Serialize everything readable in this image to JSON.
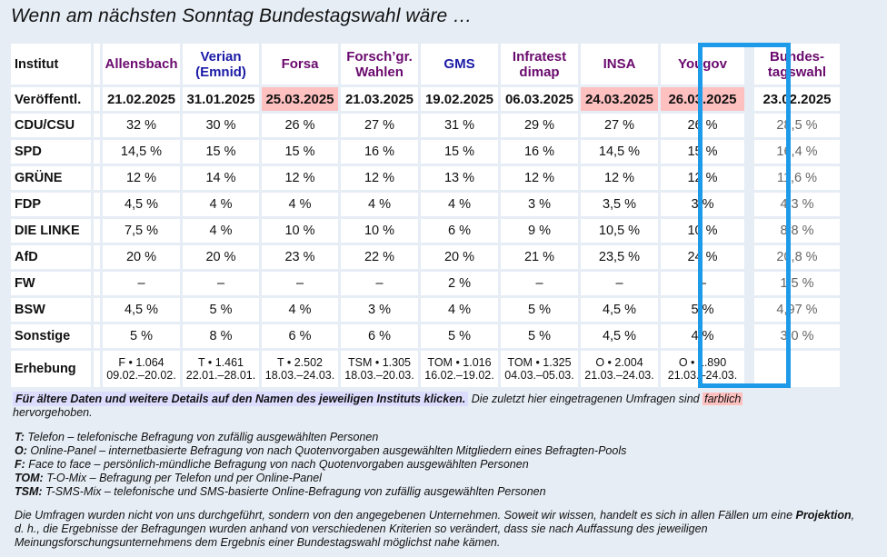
{
  "title": "Wenn am nächsten Sonntag Bundestagswahl wäre …",
  "table": {
    "institut_label": "Institut",
    "date_label": "Veröffentl.",
    "erhebung_label": "Erhebung",
    "institutes": [
      {
        "name_line1": "Allensbach",
        "name_line2": "",
        "color": "#6a0a6e",
        "date": "21.02.2025",
        "highlight": false,
        "erhebung_line1": "F • 1.064",
        "erhebung_line2": "09.02.–20.02."
      },
      {
        "name_line1": "Verian",
        "name_line2": "(Emnid)",
        "color": "#1a1aa6",
        "date": "31.01.2025",
        "highlight": false,
        "erhebung_line1": "T • 1.461",
        "erhebung_line2": "22.01.–28.01."
      },
      {
        "name_line1": "Forsa",
        "name_line2": "",
        "color": "#6a0a6e",
        "date": "25.03.2025",
        "highlight": true,
        "erhebung_line1": "T • 2.502",
        "erhebung_line2": "18.03.–24.03."
      },
      {
        "name_line1": "Forsch’gr.",
        "name_line2": "Wahlen",
        "color": "#6a0a6e",
        "date": "21.03.2025",
        "highlight": false,
        "erhebung_line1": "TSM • 1.305",
        "erhebung_line2": "18.03.–20.03."
      },
      {
        "name_line1": "GMS",
        "name_line2": "",
        "color": "#1a1aa6",
        "date": "19.02.2025",
        "highlight": false,
        "erhebung_line1": "TOM • 1.016",
        "erhebung_line2": "16.02.–19.02."
      },
      {
        "name_line1": "Infratest",
        "name_line2": "dimap",
        "color": "#6a0a6e",
        "date": "06.03.2025",
        "highlight": false,
        "erhebung_line1": "TOM • 1.325",
        "erhebung_line2": "04.03.–05.03."
      },
      {
        "name_line1": "INSA",
        "name_line2": "",
        "color": "#6a0a6e",
        "date": "24.03.2025",
        "highlight": true,
        "erhebung_line1": "O • 2.004",
        "erhebung_line2": "21.03.–24.03."
      },
      {
        "name_line1": "Yougov",
        "name_line2": "",
        "color": "#6a0a6e",
        "date": "26.03.2025",
        "highlight": true,
        "erhebung_line1": "O • 1.890",
        "erhebung_line2": "21.03.–24.03."
      }
    ],
    "result_column": {
      "name_line1": "Bundes-",
      "name_line2": "tagswahl",
      "date": "23.02.2025"
    },
    "parties": [
      {
        "name": "CDU/CSU",
        "values": [
          "32 %",
          "30 %",
          "26 %",
          "27 %",
          "31 %",
          "29 %",
          "27 %",
          "26 %"
        ],
        "result": "28,5 %"
      },
      {
        "name": "SPD",
        "values": [
          "14,5 %",
          "15 %",
          "15 %",
          "16 %",
          "15 %",
          "16 %",
          "14,5 %",
          "15 %"
        ],
        "result": "16,4 %"
      },
      {
        "name": "GRÜNE",
        "values": [
          "12 %",
          "14 %",
          "12 %",
          "12 %",
          "13 %",
          "12 %",
          "12 %",
          "12 %"
        ],
        "result": "11,6 %"
      },
      {
        "name": "FDP",
        "values": [
          "4,5 %",
          "4 %",
          "4 %",
          "4 %",
          "4 %",
          "3 %",
          "3,5 %",
          "3 %"
        ],
        "result": "4,3 %"
      },
      {
        "name": "DIE LINKE",
        "values": [
          "7,5 %",
          "4 %",
          "10 %",
          "10 %",
          "6 %",
          "9 %",
          "10,5 %",
          "10 %"
        ],
        "result": "8,8 %"
      },
      {
        "name": "AfD",
        "values": [
          "20 %",
          "20 %",
          "23 %",
          "22 %",
          "20 %",
          "21 %",
          "23,5 %",
          "24 %"
        ],
        "result": "20,8 %"
      },
      {
        "name": "FW",
        "values": [
          "–",
          "–",
          "–",
          "–",
          "2 %",
          "–",
          "–",
          "–"
        ],
        "result": "1,5 %"
      },
      {
        "name": "BSW",
        "values": [
          "4,5 %",
          "5 %",
          "4 %",
          "3 %",
          "4 %",
          "5 %",
          "4,5 %",
          "5 %"
        ],
        "result": "4,97 %"
      },
      {
        "name": "Sonstige",
        "values": [
          "5 %",
          "8 %",
          "6 %",
          "6 %",
          "5 %",
          "5 %",
          "4,5 %",
          "4 %"
        ],
        "result": "3,0 %"
      }
    ],
    "highlight_color": "#ffc0c0",
    "focus_box_color": "#1e9be8"
  },
  "note": {
    "link_text": "Für ältere Daten und weitere Details auf den Namen des jeweiligen Instituts klicken.",
    "text_before": "Die zuletzt hier eingetragenen Umfragen sind",
    "highlight_word": "farblich",
    "text_after": "hervorgehoben."
  },
  "legend": [
    {
      "key": "T:",
      "text": "Telefon – telefonische Befragung von zufällig ausgewählten Personen"
    },
    {
      "key": "O:",
      "text": "Online-Panel – internetbasierte Befragung von nach Quotenvorgaben ausgewählten Mitgliedern eines Befragten-Pools"
    },
    {
      "key": "F:",
      "text": "Face to face – persönlich-mündliche Befragung von nach Quotenvorgaben ausgewählten Personen"
    },
    {
      "key": "TOM:",
      "text": "T-O-Mix – Befragung per Telefon und per Online-Panel"
    },
    {
      "key": "TSM:",
      "text": "T-SMS-Mix – telefonische und SMS-basierte Online-Befragung von zufällig ausgewählten Personen"
    }
  ],
  "disclaimer": {
    "part1": "Die Umfragen wurden nicht von uns durchgeführt, sondern von den angegebenen Unternehmen. Soweit wir wissen, handelt es sich in allen Fällen um eine",
    "bold": "Projektion",
    "part2": ", d. h., die Ergebnisse der Befragungen wurden anhand von verschiedenen Kriterien so verändert, dass sie nach Auffassung des jeweiligen Meinungsforschungsunternehmens dem Ergebnis einer Bundestagswahl möglichst nahe kämen."
  }
}
